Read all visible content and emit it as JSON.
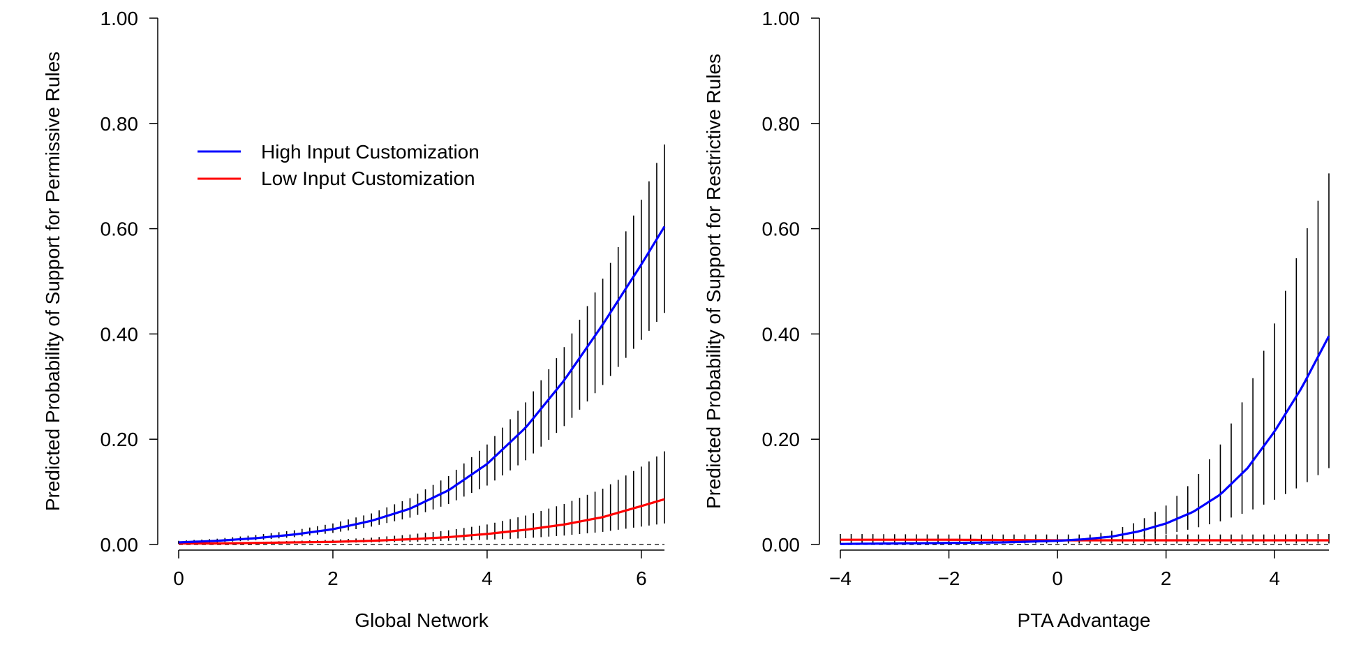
{
  "colors": {
    "high": "#0000ff",
    "low": "#ff0000",
    "bars": "#000000",
    "axis": "#000000"
  },
  "chart_data": [
    {
      "type": "line",
      "panel": "left",
      "xlabel": "Global Network",
      "ylabel": "Predicted Probability of Support for Permissive Rules",
      "xlim": [
        0,
        6.3
      ],
      "ylim": [
        0,
        1
      ],
      "xticks": [
        0,
        2,
        4,
        6
      ],
      "xtick_labels": [
        "0",
        "2",
        "4",
        "6"
      ],
      "yticks": [
        0,
        0.2,
        0.4,
        0.6,
        0.8,
        1.0
      ],
      "ytick_labels": [
        "0.00",
        "0.20",
        "0.40",
        "0.60",
        "0.80",
        "1.00"
      ],
      "reference_line": 0,
      "legend": {
        "placement": "top-left",
        "entries": [
          {
            "label": "High Input Customization",
            "color": "#0000ff"
          },
          {
            "label": "Low Input Customization",
            "color": "#ff0000"
          }
        ]
      },
      "series": [
        {
          "name": "High Input Customization",
          "color": "#0000ff",
          "x": [
            0,
            0.5,
            1.0,
            1.5,
            2.0,
            2.5,
            3.0,
            3.5,
            4.0,
            4.5,
            5.0,
            5.5,
            6.0,
            6.3
          ],
          "y": [
            0.004,
            0.007,
            0.012,
            0.019,
            0.029,
            0.045,
            0.068,
            0.103,
            0.153,
            0.222,
            0.312,
            0.418,
            0.532,
            0.604
          ],
          "lower": [
            0.002,
            0.004,
            0.008,
            0.014,
            0.022,
            0.034,
            0.051,
            0.077,
            0.112,
            0.16,
            0.225,
            0.303,
            0.389,
            0.44
          ],
          "upper": [
            0.007,
            0.011,
            0.018,
            0.027,
            0.04,
            0.059,
            0.088,
            0.13,
            0.19,
            0.27,
            0.375,
            0.505,
            0.655,
            0.76
          ]
        },
        {
          "name": "Low Input Customization",
          "color": "#ff0000",
          "x": [
            0,
            0.5,
            1.0,
            1.5,
            2.0,
            2.5,
            3.0,
            3.5,
            4.0,
            4.5,
            5.0,
            5.5,
            6.0,
            6.3
          ],
          "y": [
            0.002,
            0.002,
            0.003,
            0.004,
            0.005,
            0.007,
            0.01,
            0.014,
            0.02,
            0.028,
            0.038,
            0.052,
            0.073,
            0.086
          ],
          "lower": [
            0.001,
            0.001,
            0.002,
            0.002,
            0.003,
            0.004,
            0.005,
            0.007,
            0.009,
            0.012,
            0.017,
            0.024,
            0.034,
            0.04
          ],
          "upper": [
            0.004,
            0.004,
            0.005,
            0.007,
            0.009,
            0.013,
            0.019,
            0.027,
            0.038,
            0.055,
            0.077,
            0.106,
            0.148,
            0.177
          ]
        }
      ],
      "bar_count": 64
    },
    {
      "type": "line",
      "panel": "right",
      "xlabel": "PTA Advantage",
      "ylabel": "Predicted Probability of Support for Restrictive Rules",
      "xlim": [
        -4,
        5
      ],
      "ylim": [
        0,
        1
      ],
      "xticks": [
        -4,
        -2,
        0,
        2,
        4
      ],
      "xtick_labels": [
        "−4",
        "−2",
        "0",
        "2",
        "4"
      ],
      "yticks": [
        0,
        0.2,
        0.4,
        0.6,
        0.8,
        1.0
      ],
      "ytick_labels": [
        "0.00",
        "0.20",
        "0.40",
        "0.60",
        "0.80",
        "1.00"
      ],
      "reference_line": 0,
      "series": [
        {
          "name": "High Input Customization",
          "color": "#0000ff",
          "x": [
            -4,
            -3,
            -2,
            -1,
            0,
            0.5,
            1.0,
            1.5,
            2.0,
            2.5,
            3.0,
            3.5,
            4.0,
            4.5,
            5.0
          ],
          "y": [
            0.001,
            0.002,
            0.003,
            0.004,
            0.007,
            0.01,
            0.015,
            0.025,
            0.04,
            0.062,
            0.095,
            0.145,
            0.215,
            0.298,
            0.396
          ],
          "lower": [
            0.0,
            0.001,
            0.001,
            0.002,
            0.005,
            0.006,
            0.009,
            0.013,
            0.02,
            0.03,
            0.044,
            0.062,
            0.085,
            0.112,
            0.145
          ],
          "upper": [
            0.003,
            0.004,
            0.005,
            0.007,
            0.01,
            0.016,
            0.026,
            0.044,
            0.074,
            0.12,
            0.19,
            0.29,
            0.42,
            0.575,
            0.705
          ]
        },
        {
          "name": "Low Input Customization",
          "color": "#ff0000",
          "x": [
            -4,
            -2,
            0,
            2,
            4,
            5
          ],
          "y": [
            0.009,
            0.009,
            0.008,
            0.008,
            0.008,
            0.008
          ],
          "lower": [
            0.002,
            0.002,
            0.002,
            0.002,
            0.002,
            0.002
          ],
          "upper": [
            0.02,
            0.019,
            0.019,
            0.019,
            0.019,
            0.02
          ]
        }
      ],
      "bar_count": 46
    }
  ]
}
